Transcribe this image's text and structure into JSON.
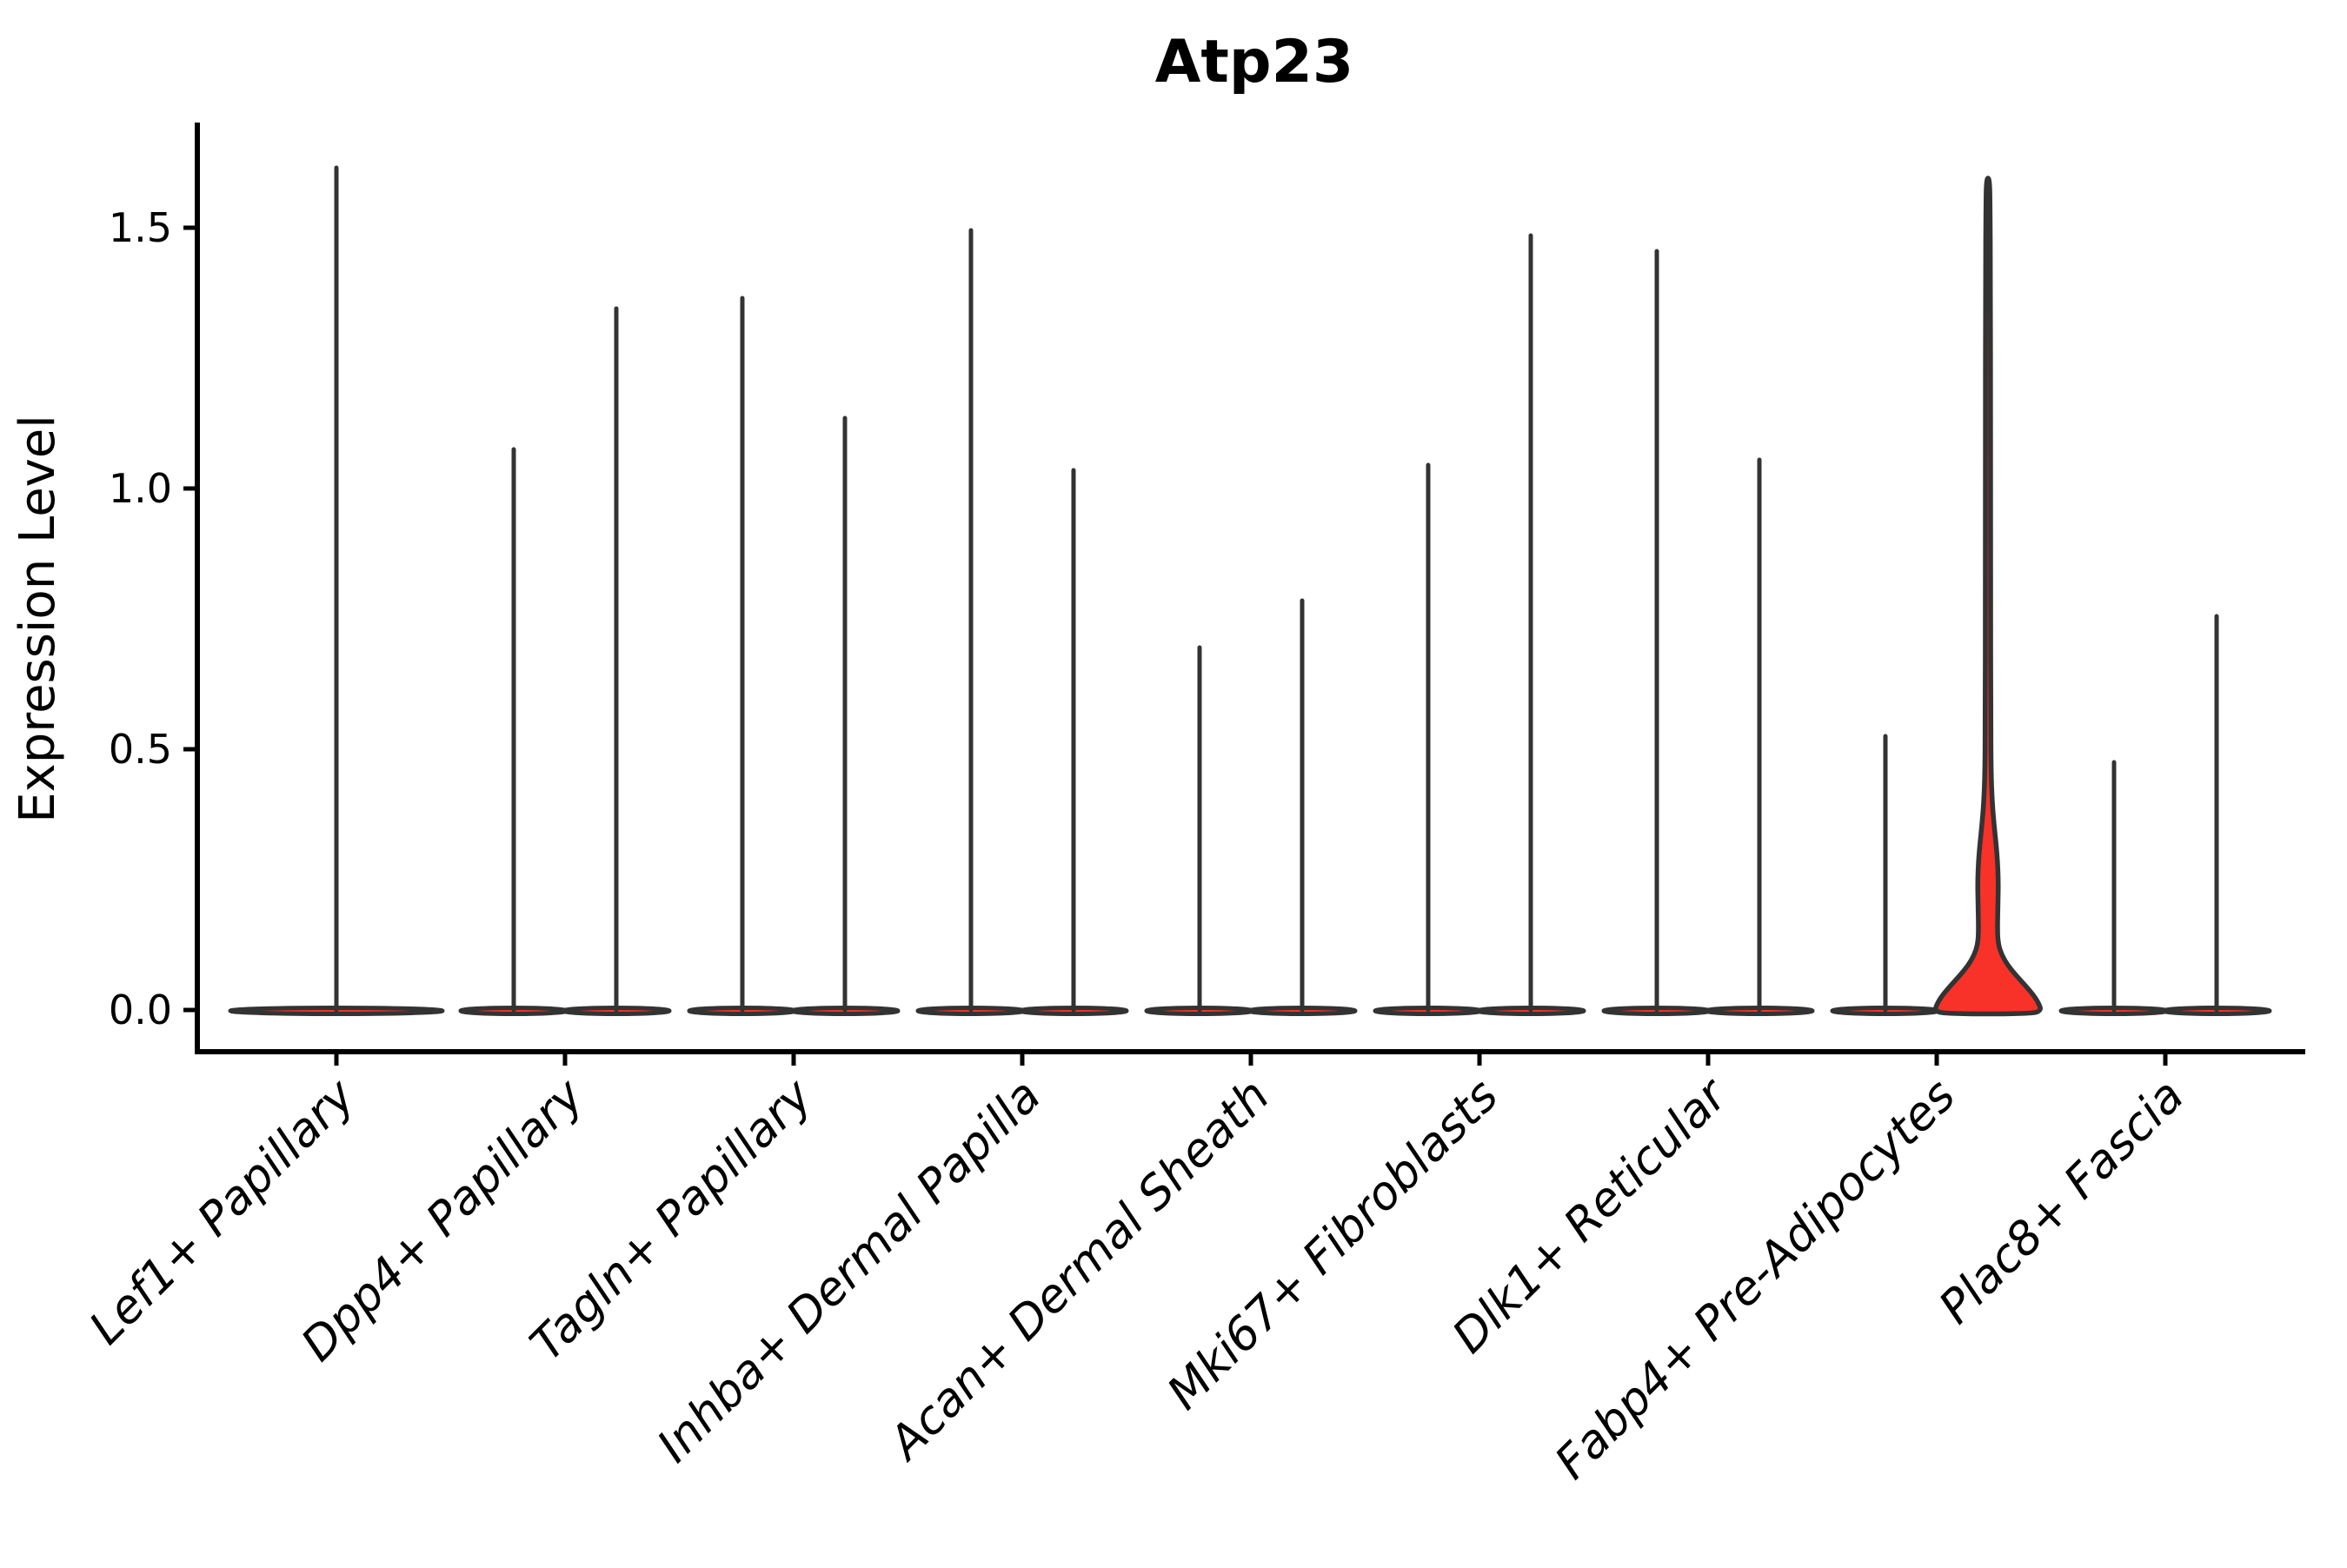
{
  "chart_data": {
    "type": "violin",
    "title": "Atp23",
    "xlabel": "",
    "ylabel": "Expression Level",
    "ylim": [
      -0.08,
      1.7
    ],
    "yticks": [
      0.0,
      0.5,
      1.0,
      1.5
    ],
    "ytick_labels": [
      "0.0",
      "0.5",
      "1.0",
      "1.5"
    ],
    "grid": false,
    "legend": "none",
    "categories": [
      "Lef1+ Papillary",
      "Dpp4+ Papillary",
      "Tagln+ Papillary",
      "Inhba+ Dermal Papilla",
      "Acan+ Dermal Sheath",
      "Mki67+ Fibroblasts",
      "Dlk1+ Reticular",
      "Fabp4+ Pre-Adipocytes",
      "Plac8+ Fascia"
    ],
    "series": [
      {
        "category": "Lef1+ Papillary",
        "violins": [
          {
            "max": 1.62,
            "highlighted": false
          }
        ]
      },
      {
        "category": "Dpp4+ Papillary",
        "violins": [
          {
            "max": 1.08,
            "highlighted": false
          },
          {
            "max": 1.35,
            "highlighted": false
          }
        ]
      },
      {
        "category": "Tagln+ Papillary",
        "violins": [
          {
            "max": 1.37,
            "highlighted": false
          },
          {
            "max": 1.14,
            "highlighted": false
          }
        ]
      },
      {
        "category": "Inhba+ Dermal Papilla",
        "violins": [
          {
            "max": 1.5,
            "highlighted": false
          },
          {
            "max": 1.04,
            "highlighted": false
          }
        ]
      },
      {
        "category": "Acan+ Dermal Sheath",
        "violins": [
          {
            "max": 0.7,
            "highlighted": false
          },
          {
            "max": 0.79,
            "highlighted": false
          }
        ]
      },
      {
        "category": "Mki67+ Fibroblasts",
        "violins": [
          {
            "max": 1.05,
            "highlighted": false
          },
          {
            "max": 1.49,
            "highlighted": false
          }
        ]
      },
      {
        "category": "Dlk1+ Reticular",
        "violins": [
          {
            "max": 1.46,
            "highlighted": false
          },
          {
            "max": 1.06,
            "highlighted": false
          }
        ]
      },
      {
        "category": "Fabp4+ Pre-Adipocytes",
        "violins": [
          {
            "max": 0.53,
            "highlighted": false
          },
          {
            "max": 1.6,
            "highlighted": true
          }
        ]
      },
      {
        "category": "Plac8+ Fascia",
        "violins": [
          {
            "max": 0.48,
            "highlighted": false
          },
          {
            "max": 0.76,
            "highlighted": false
          }
        ]
      }
    ],
    "highlight": {
      "category": "Fabp4+ Pre-Adipocytes",
      "violin_index": 1,
      "max": 1.6,
      "density_profile": [
        [
          0.0,
          61.0
        ],
        [
          0.01,
          59.0
        ],
        [
          0.025,
          54.0
        ],
        [
          0.045,
          44.0
        ],
        [
          0.065,
          33.0
        ],
        [
          0.085,
          23.0
        ],
        [
          0.105,
          16.0
        ],
        [
          0.125,
          12.0
        ],
        [
          0.15,
          10.8
        ],
        [
          0.205,
          11.5
        ],
        [
          0.245,
          11.9
        ],
        [
          0.285,
          11.0
        ],
        [
          0.32,
          9.2
        ],
        [
          0.355,
          7.0
        ],
        [
          0.395,
          5.0
        ],
        [
          0.45,
          3.6
        ],
        [
          0.55,
          3.2
        ],
        [
          0.8,
          3.0
        ],
        [
          1.1,
          3.0
        ],
        [
          1.4,
          2.8
        ],
        [
          1.54,
          2.4
        ],
        [
          1.595,
          1.8
        ]
      ]
    },
    "colors": {
      "violin_fill": "#f83228",
      "violin_outline": "#333333",
      "axis": "#000000",
      "background": "#ffffff"
    }
  }
}
